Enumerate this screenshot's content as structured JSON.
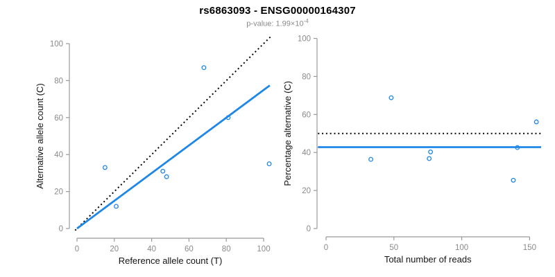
{
  "header": {
    "title": "rs6863093 - ENSG00000164307",
    "subtitle_base": "p-value: 1.99×10",
    "subtitle_exponent": "-4"
  },
  "colors": {
    "accent_blue": "#1f87e8",
    "line_black": "#000000",
    "axis_gray": "#999999",
    "tick_label_gray": "#8a8a8a",
    "axis_title_color": "#141414"
  },
  "chart_data": [
    {
      "id": "allele-counts",
      "type": "scatter",
      "title": "",
      "xlabel": "Reference allele count (T)",
      "ylabel": "Alternative allele count (C)",
      "xticks": [
        0,
        20,
        40,
        60,
        80,
        100
      ],
      "yticks": [
        0,
        20,
        40,
        60,
        80,
        100
      ],
      "xlim": [
        0,
        103
      ],
      "ylim": [
        0,
        100
      ],
      "grid": false,
      "legend": "none",
      "points": [
        [
          15,
          33
        ],
        [
          21,
          12
        ],
        [
          46,
          31
        ],
        [
          48,
          28
        ],
        [
          68,
          87
        ],
        [
          81,
          60
        ],
        [
          103,
          35
        ]
      ],
      "lines": [
        {
          "name": "identity-line",
          "style": "dotted",
          "color": "black",
          "slope": 1,
          "intercept": 0,
          "x": [
            -1,
            104
          ],
          "y": [
            -1,
            104
          ]
        },
        {
          "name": "regression-line",
          "style": "solid",
          "color": "blue",
          "slope": 0.749,
          "intercept": 0,
          "x": [
            0,
            103.3
          ],
          "y": [
            0,
            77.4
          ]
        }
      ]
    },
    {
      "id": "percentage-alternative",
      "type": "scatter",
      "title": "",
      "xlabel": "Total number of reads",
      "ylabel": "Percentage alternative (C)",
      "xticks": [
        0,
        50,
        100,
        150
      ],
      "yticks": [
        0,
        20,
        40,
        60,
        80,
        100
      ],
      "xlim": [
        0,
        155
      ],
      "ylim": [
        0,
        100
      ],
      "grid": false,
      "legend": "none",
      "points": [
        [
          48,
          68.8
        ],
        [
          33,
          36.4
        ],
        [
          77,
          40.3
        ],
        [
          76,
          36.8
        ],
        [
          155,
          56.1
        ],
        [
          141,
          42.6
        ],
        [
          138,
          25.4
        ]
      ],
      "lines": [
        {
          "name": "expected-50pct-line",
          "style": "dotted",
          "color": "black",
          "value": 50,
          "x": [
            -6,
            158.5
          ],
          "y": [
            50,
            50
          ]
        },
        {
          "name": "mean-percentage-line",
          "style": "solid",
          "color": "blue",
          "value": 42.8,
          "x": [
            -6,
            158.5
          ],
          "y": [
            42.8,
            42.8
          ]
        }
      ]
    }
  ]
}
